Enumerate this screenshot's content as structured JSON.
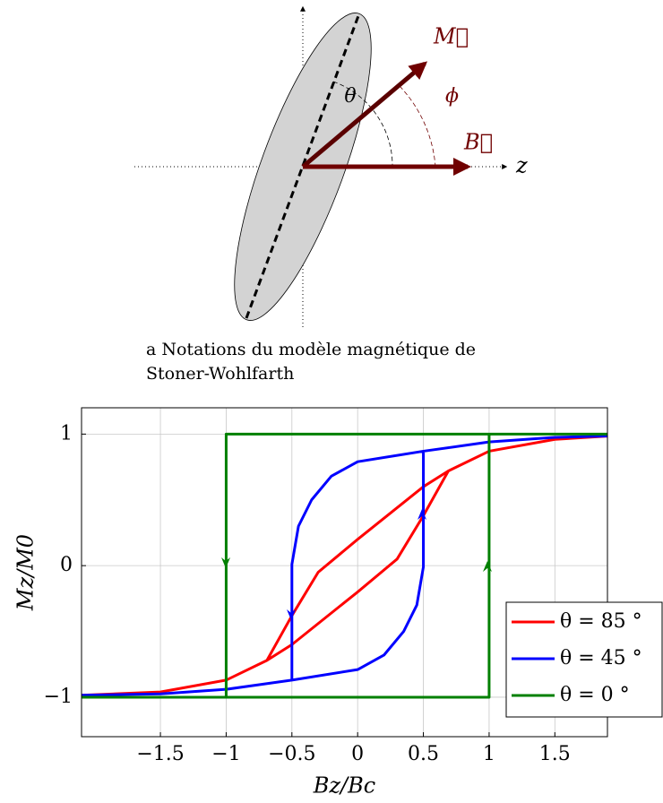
{
  "diagram": {
    "labels": {
      "magnetization": "M⃗",
      "theta": "θ",
      "phi": "ϕ",
      "field": "B⃗",
      "axis": "z"
    },
    "caption": [
      "a Notations du modèle magnétique de",
      "Stoner-Wohlfarth"
    ]
  },
  "chart_data": {
    "type": "line",
    "xlabel": "Bz/Bc",
    "ylabel": "Mz/M0",
    "xlim": [
      -2.1,
      1.9
    ],
    "ylim": [
      -1.3,
      1.2
    ],
    "xticks": [
      {
        "value": -1.5,
        "label": "−1.5"
      },
      {
        "value": -1,
        "label": "−1"
      },
      {
        "value": -0.5,
        "label": "−0.5"
      },
      0,
      0.5,
      1,
      1.5
    ],
    "yticks": [
      {
        "value": -1,
        "label": "−1"
      },
      0,
      1
    ],
    "grid": true,
    "legend": "lower right",
    "series": [
      {
        "name": "θ = 85 °",
        "color": "#ff0000",
        "x": [
          1.9,
          1.5,
          1,
          0.69,
          0.5,
          0,
          -0.3,
          -0.5,
          -0.69,
          -1,
          -1.5,
          -2.1,
          null,
          -2.1,
          -1.5,
          -1,
          -0.69,
          -0.5,
          0,
          0.3,
          0.5,
          0.69,
          1,
          1.5,
          1.9
        ],
        "values": [
          0.985,
          0.96,
          0.87,
          0.72,
          0.6,
          0.2,
          -0.05,
          -0.38,
          -0.72,
          -0.87,
          -0.96,
          -0.985,
          null,
          -0.985,
          -0.96,
          -0.87,
          -0.72,
          -0.6,
          -0.2,
          0.05,
          0.38,
          0.72,
          0.87,
          0.96,
          0.985
        ]
      },
      {
        "name": "θ = 45 °",
        "color": "#0000ff",
        "x": [
          1.9,
          1.5,
          1,
          0.5,
          0,
          -0.2,
          -0.35,
          -0.45,
          -0.5,
          -0.5,
          -1,
          -1.5,
          -2.1,
          null,
          -2.1,
          -1.5,
          -1,
          -0.5,
          0,
          0.2,
          0.35,
          0.45,
          0.5,
          0.5,
          1,
          1.5,
          1.9
        ],
        "values": [
          0.985,
          0.975,
          0.94,
          0.87,
          0.79,
          0.68,
          0.5,
          0.3,
          0.01,
          -0.87,
          -0.94,
          -0.975,
          -0.985,
          null,
          -0.985,
          -0.975,
          -0.94,
          -0.87,
          -0.79,
          -0.68,
          -0.5,
          -0.3,
          -0.01,
          0.87,
          0.94,
          0.975,
          0.985
        ]
      },
      {
        "name": "θ = 0 °",
        "color": "#008000",
        "x": [
          -2.1,
          1,
          1,
          1.9,
          null,
          1.9,
          -1,
          -1,
          -2.1
        ],
        "values": [
          -1,
          -1,
          1,
          1,
          null,
          1,
          1,
          -1,
          -1
        ]
      }
    ]
  }
}
